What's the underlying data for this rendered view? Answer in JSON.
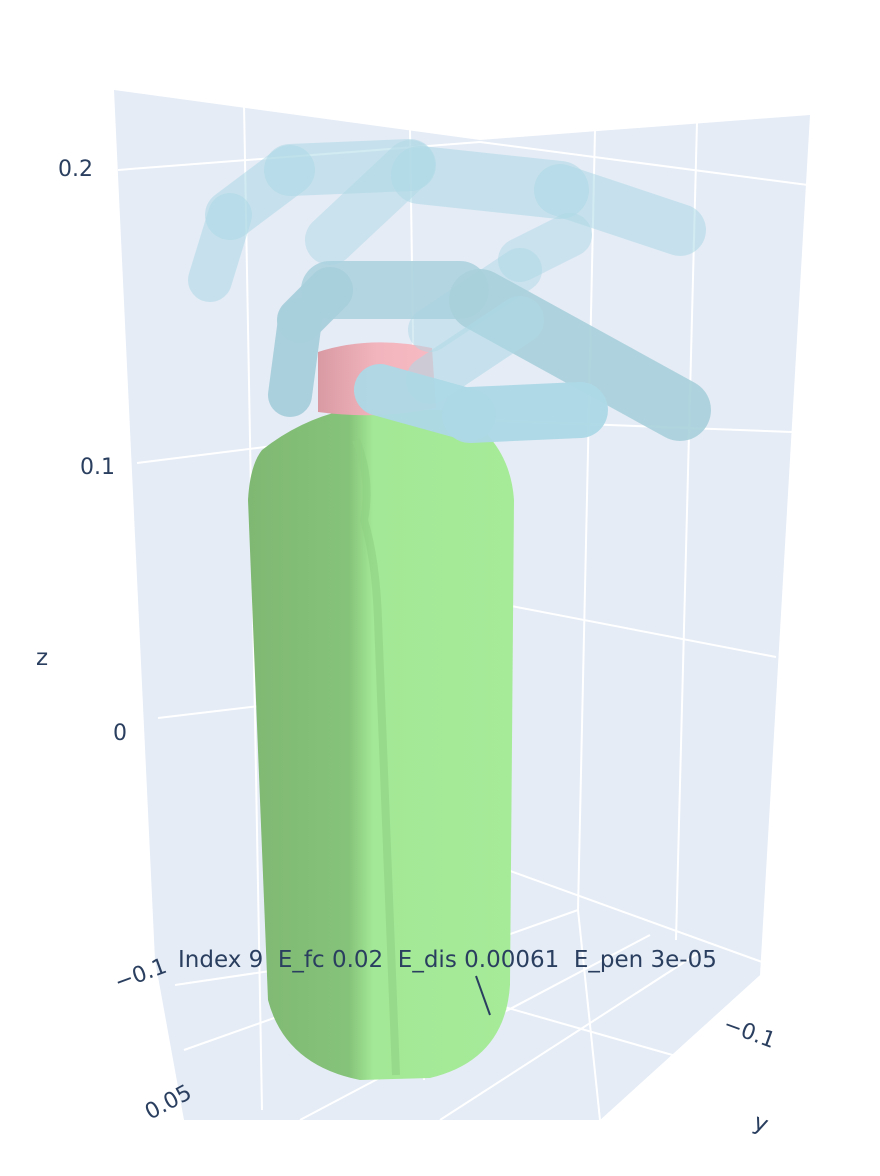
{
  "chart_data": {
    "type": "scatter3d",
    "scene": {
      "bgcolor": "#e5ecf6",
      "gridcolor": "#ffffff",
      "grid": true
    },
    "axes": {
      "z": {
        "title": "z",
        "ticks": [
          "0.2",
          "0.1",
          "0",
          "−0.1"
        ]
      },
      "x": {
        "ticks": [
          "0.05"
        ]
      },
      "y": {
        "title": "y",
        "ticks": [
          "−0.1"
        ]
      }
    },
    "objects": [
      {
        "name": "bottle-body",
        "color": "#90ee90"
      },
      {
        "name": "bottle-cap",
        "color": "#ffb6c1"
      },
      {
        "name": "robot-hand",
        "color": "#add8e6"
      }
    ],
    "annotation": {
      "text": "Index 9  E_fc 0.02  E_dis 0.00061  E_pen 3e-05",
      "index": 9,
      "E_fc": 0.02,
      "E_dis": 0.00061,
      "E_pen": 3e-05
    }
  }
}
